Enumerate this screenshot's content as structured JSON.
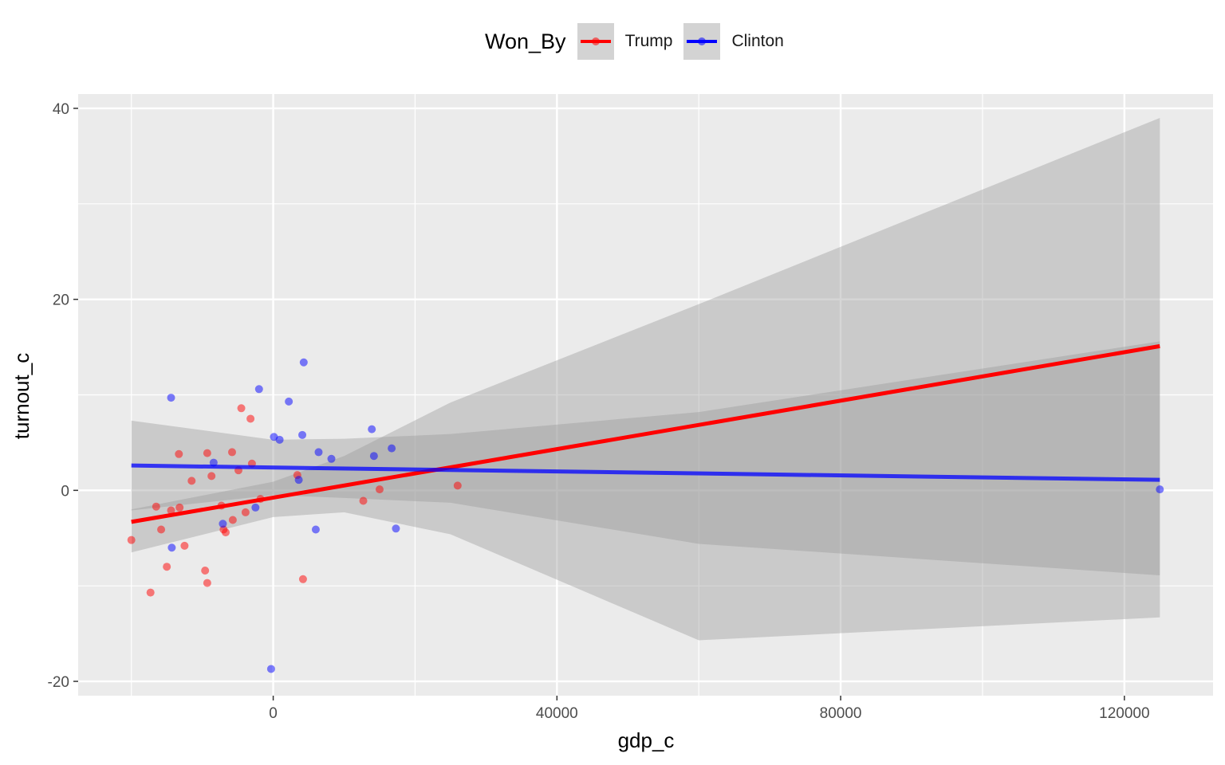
{
  "chart_data": {
    "type": "scatter",
    "title": "",
    "xlabel": "gdp_c",
    "ylabel": "turnout_c",
    "xlim": [
      -27500,
      132500
    ],
    "ylim": [
      -21.5,
      41.5
    ],
    "x_ticks": [
      0,
      40000,
      80000,
      120000
    ],
    "x_tick_labels": [
      "0",
      "40000",
      "80000",
      "120000"
    ],
    "y_ticks": [
      -20,
      0,
      20,
      40
    ],
    "y_tick_labels": [
      "-20",
      "0",
      "20",
      "40"
    ],
    "grid": true,
    "legend": {
      "title": "Won_By",
      "placement": "top",
      "entries": [
        {
          "label": "Trump",
          "color": "#ff0000"
        },
        {
          "label": "Clinton",
          "color": "#0000ff"
        }
      ]
    },
    "colors": {
      "Trump": "#ff0000",
      "Clinton": "#0000ff",
      "band": "#999999"
    },
    "series": [
      {
        "name": "Trump",
        "color": "#ff0000",
        "points": [
          [
            -20000,
            -5.2
          ],
          [
            -17300,
            -10.7
          ],
          [
            -16500,
            -1.7
          ],
          [
            -15800,
            -4.1
          ],
          [
            -15000,
            -8.0
          ],
          [
            -14400,
            -2.1
          ],
          [
            -13300,
            3.8
          ],
          [
            -13200,
            -1.8
          ],
          [
            -12500,
            -5.8
          ],
          [
            -11500,
            1.0
          ],
          [
            -9600,
            -8.4
          ],
          [
            -9300,
            -9.7
          ],
          [
            -9300,
            3.9
          ],
          [
            -8700,
            1.5
          ],
          [
            -7300,
            -1.6
          ],
          [
            -7000,
            -4.1
          ],
          [
            -6700,
            -4.4
          ],
          [
            -5800,
            4.0
          ],
          [
            -5700,
            -3.1
          ],
          [
            -4900,
            2.1
          ],
          [
            -4500,
            8.6
          ],
          [
            -3900,
            -2.3
          ],
          [
            -3200,
            7.5
          ],
          [
            -3000,
            2.8
          ],
          [
            -1800,
            -0.9
          ],
          [
            3400,
            1.6
          ],
          [
            4200,
            -9.3
          ],
          [
            12700,
            -1.1
          ],
          [
            15000,
            0.1
          ],
          [
            26000,
            0.5
          ]
        ],
        "fit": {
          "x": [
            -20000,
            125000
          ],
          "y": [
            -3.3,
            15.1
          ]
        },
        "ci": {
          "x": [
            -20000,
            0,
            10000,
            25000,
            60000,
            125000
          ],
          "upper": [
            -2.0,
            0.9,
            3.6,
            9.2,
            19.5,
            39.0
          ],
          "lower": [
            -6.5,
            -2.8,
            -2.3,
            -4.6,
            -15.7,
            -13.3
          ]
        }
      },
      {
        "name": "Clinton",
        "color": "#0000ff",
        "points": [
          [
            -14400,
            9.7
          ],
          [
            -14300,
            -6.0
          ],
          [
            -8400,
            2.9
          ],
          [
            -7100,
            -3.5
          ],
          [
            -2500,
            -1.8
          ],
          [
            -2000,
            10.6
          ],
          [
            -300,
            -18.7
          ],
          [
            100,
            5.6
          ],
          [
            900,
            5.3
          ],
          [
            2200,
            9.3
          ],
          [
            3600,
            1.1
          ],
          [
            4100,
            5.8
          ],
          [
            4300,
            13.4
          ],
          [
            6000,
            -4.1
          ],
          [
            6400,
            4.0
          ],
          [
            8200,
            3.3
          ],
          [
            13900,
            6.4
          ],
          [
            14200,
            3.6
          ],
          [
            16700,
            4.4
          ],
          [
            17300,
            -4.0
          ],
          [
            125000,
            0.1
          ]
        ],
        "fit": {
          "x": [
            -20000,
            125000
          ],
          "y": [
            2.6,
            1.1
          ]
        },
        "ci": {
          "x": [
            -20000,
            0,
            10000,
            25000,
            60000,
            125000
          ],
          "upper": [
            7.3,
            5.3,
            5.4,
            5.9,
            8.2,
            15.6
          ],
          "lower": [
            -2.1,
            -0.5,
            -0.8,
            -1.3,
            -5.6,
            -8.9
          ]
        }
      }
    ]
  }
}
